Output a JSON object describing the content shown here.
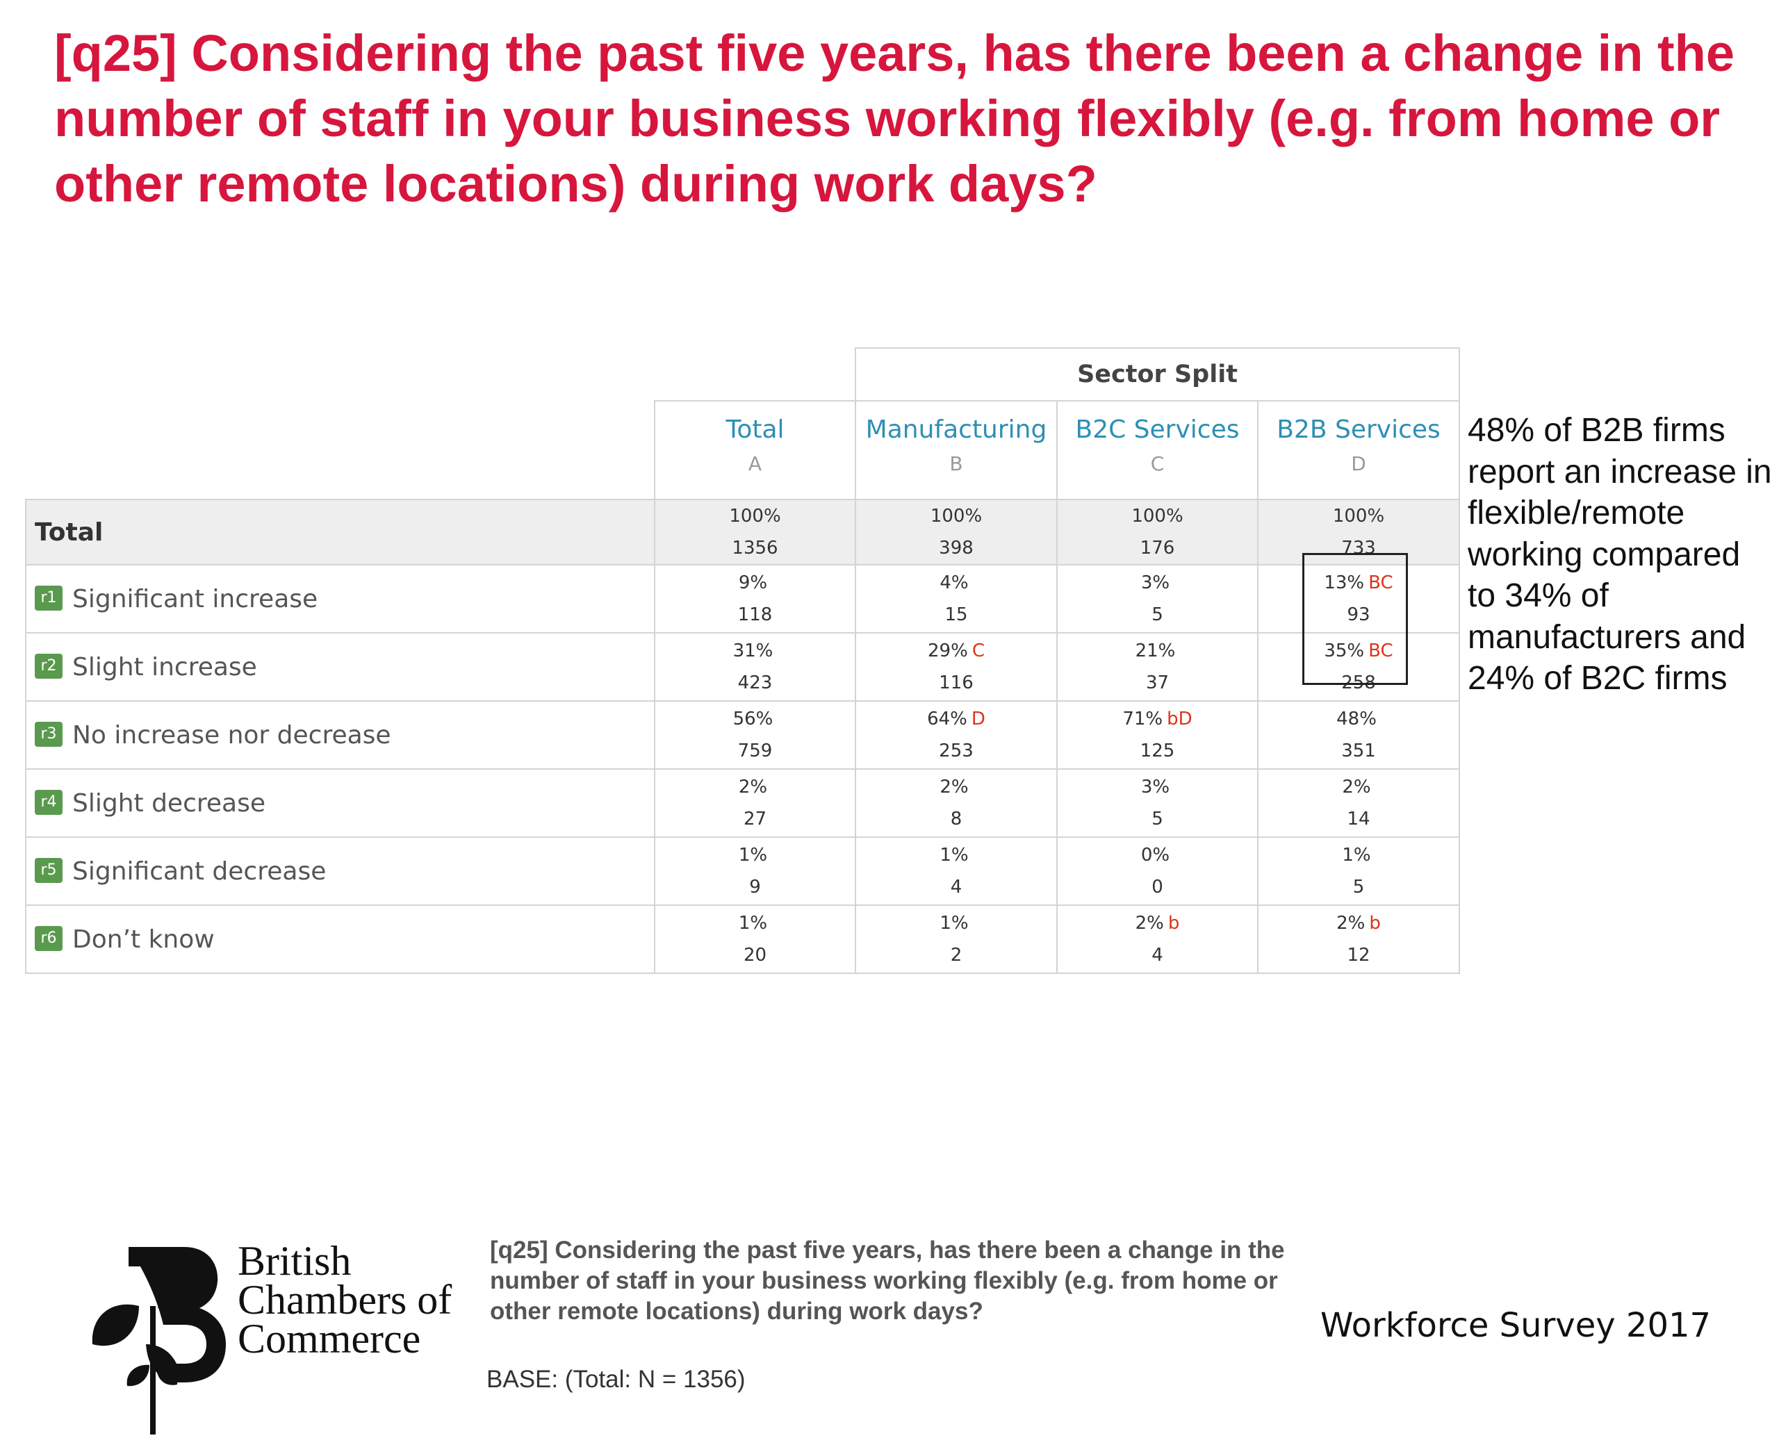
{
  "title": "[q25] Considering the past five years, has there been a change in the number of staff in your business working flexibly (e.g. from home or other remote locations) during work days?",
  "table": {
    "sector_split_label": "Sector Split",
    "columns": [
      {
        "name": "Total",
        "letter": "A"
      },
      {
        "name": "Manufacturing",
        "letter": "B"
      },
      {
        "name": "B2C Services",
        "letter": "C"
      },
      {
        "name": "B2B Services",
        "letter": "D"
      }
    ],
    "total_row": {
      "label": "Total",
      "pct": [
        "100%",
        "100%",
        "100%",
        "100%"
      ],
      "count": [
        "1356",
        "398",
        "176",
        "733"
      ]
    },
    "rows": [
      {
        "badge": "r1",
        "label": "Significant increase",
        "pct": [
          "9%",
          "4%",
          "3%",
          "13%"
        ],
        "sig": [
          "",
          "",
          "",
          "BC"
        ],
        "count": [
          "118",
          "15",
          "5",
          "93"
        ]
      },
      {
        "badge": "r2",
        "label": "Slight increase",
        "pct": [
          "31%",
          "29%",
          "21%",
          "35%"
        ],
        "sig": [
          "",
          "C",
          "",
          "BC"
        ],
        "count": [
          "423",
          "116",
          "37",
          "258"
        ]
      },
      {
        "badge": "r3",
        "label": "No increase nor decrease",
        "pct": [
          "56%",
          "64%",
          "71%",
          "48%"
        ],
        "sig": [
          "",
          "D",
          "bD",
          ""
        ],
        "count": [
          "759",
          "253",
          "125",
          "351"
        ]
      },
      {
        "badge": "r4",
        "label": "Slight decrease",
        "pct": [
          "2%",
          "2%",
          "3%",
          "2%"
        ],
        "sig": [
          "",
          "",
          "",
          ""
        ],
        "count": [
          "27",
          "8",
          "5",
          "14"
        ]
      },
      {
        "badge": "r5",
        "label": "Significant decrease",
        "pct": [
          "1%",
          "1%",
          "0%",
          "1%"
        ],
        "sig": [
          "",
          "",
          "",
          ""
        ],
        "count": [
          "9",
          "4",
          "0",
          "5"
        ]
      },
      {
        "badge": "r6",
        "label": "Don’t know",
        "pct": [
          "1%",
          "1%",
          "2%",
          "2%"
        ],
        "sig": [
          "",
          "",
          "b",
          "b"
        ],
        "count": [
          "20",
          "2",
          "4",
          "12"
        ]
      }
    ]
  },
  "side_note": "48% of B2B firms report an increase in flexible/remote working compared to 34% of manufacturers and 24% of B2C firms",
  "footer": {
    "logo_lines": [
      "British",
      "Chambers of",
      "Commerce"
    ],
    "question": "[q25] Considering the past five years, has there been a change in the number of staff in your business working flexibly (e.g. from home or other remote locations) during work days?",
    "base": "BASE: (Total: N = 1356)",
    "survey_name": "Workforce Survey 2017"
  },
  "colors": {
    "title": "#d7163d",
    "column_header": "#2d8fb5",
    "significance": "#e0331b",
    "row_badge": "#5a9a4e"
  }
}
